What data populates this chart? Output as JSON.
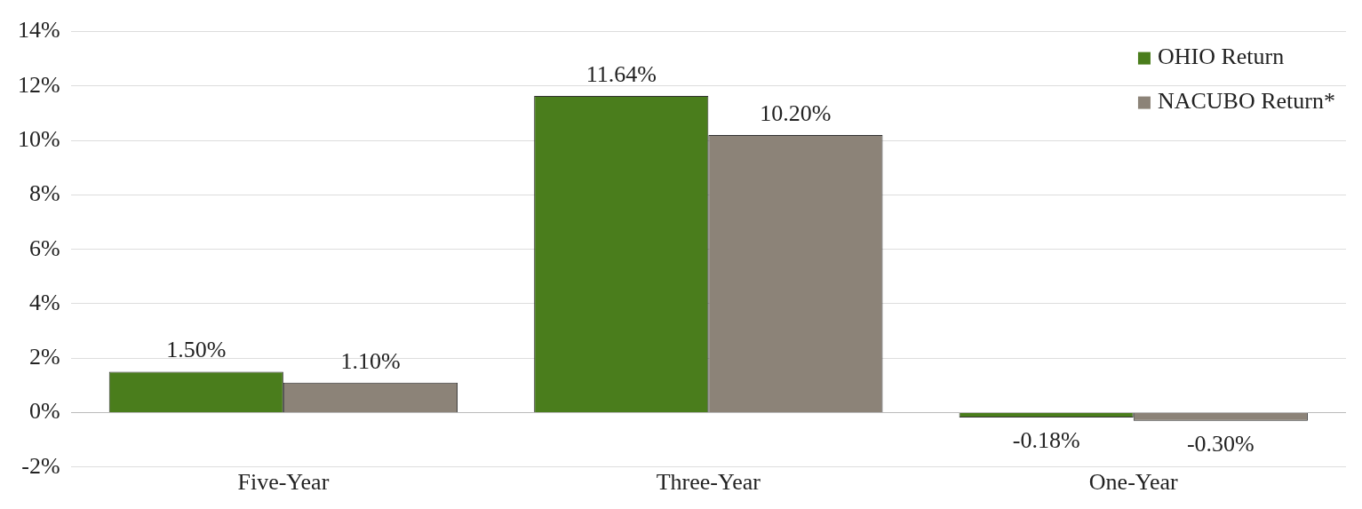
{
  "chart_data": {
    "type": "bar",
    "categories": [
      "Five-Year",
      "Three-Year",
      "One-Year"
    ],
    "series": [
      {
        "name": "OHIO Return",
        "color": "#4a7d1c",
        "values": [
          1.5,
          11.64,
          -0.18
        ],
        "value_labels": [
          "1.50%",
          "11.64%",
          "-0.18%"
        ]
      },
      {
        "name": "NACUBO Return*",
        "color": "#8c8378",
        "values": [
          1.1,
          10.2,
          -0.3
        ],
        "value_labels": [
          "1.10%",
          "10.20%",
          "-0.30%"
        ]
      }
    ],
    "ylim": [
      -2,
      14
    ],
    "yticks": [
      {
        "value": -2,
        "label": "-2%"
      },
      {
        "value": 0,
        "label": "0%"
      },
      {
        "value": 2,
        "label": "2%"
      },
      {
        "value": 4,
        "label": "4%"
      },
      {
        "value": 6,
        "label": "6%"
      },
      {
        "value": 8,
        "label": "8%"
      },
      {
        "value": 10,
        "label": "10%"
      },
      {
        "value": 12,
        "label": "12%"
      },
      {
        "value": 14,
        "label": "14%"
      }
    ],
    "grid": "y",
    "legend": "top right"
  }
}
